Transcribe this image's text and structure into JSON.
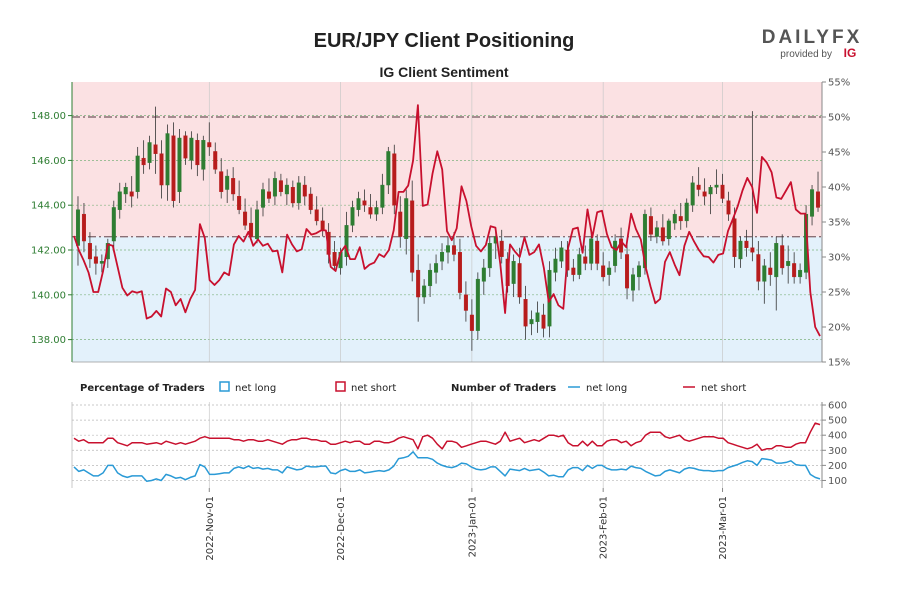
{
  "chart_data": {
    "type": "candlestick+line",
    "title": "EUR/JPY Client Positioning",
    "subtitle": "IG Client Sentiment",
    "brand": {
      "name": "DAILYFX",
      "provided_by": "provided by",
      "provider": "IG"
    },
    "price_axis": {
      "ylim": [
        137,
        149.5
      ],
      "ticks": [
        "148.00",
        "146.00",
        "144.00",
        "142.00",
        "140.00",
        "138.00"
      ],
      "tick_values": [
        148,
        146,
        144,
        142,
        140,
        138
      ]
    },
    "pct_axis": {
      "ylim": [
        15,
        55
      ],
      "ticks": [
        "55%",
        "50%",
        "45%",
        "40%",
        "35%",
        "30%",
        "25%",
        "20%",
        "15%"
      ],
      "tick_values": [
        55,
        50,
        45,
        40,
        35,
        30,
        25,
        20,
        15
      ]
    },
    "ref_lines_pct": [
      50,
      32.9
    ],
    "count_axis": {
      "ylim": [
        50,
        620
      ],
      "ticks": [
        "600",
        "500",
        "400",
        "300",
        "200",
        "100"
      ],
      "tick_values": [
        600,
        500,
        400,
        300,
        200,
        100
      ]
    },
    "x_labels": [
      "2022-Nov-01",
      "2022-Dec-01",
      "2023-Jan-01",
      "2023-Feb-01",
      "2023-Mar-01"
    ],
    "x_label_index": [
      22,
      44,
      66,
      88,
      108
    ],
    "legend": {
      "pct_heading": "Percentage of Traders",
      "pct_long": "net long",
      "pct_short": "net short",
      "num_heading": "Number of Traders",
      "num_long": "net long",
      "num_short": "net short"
    },
    "colors": {
      "long": "#2a9ad6",
      "short": "#c8102e",
      "bull": "#2e7d32",
      "bear": "#b71c1c",
      "green_axis": "#2e7d32",
      "short_zone": "#fbe1e3",
      "long_zone": "#e3f1fb"
    },
    "candles_ohlc": [
      [
        142.2,
        144.4,
        141.3,
        143.8
      ],
      [
        143.6,
        144.1,
        141.9,
        142.4
      ],
      [
        142.3,
        142.8,
        141.2,
        141.6
      ],
      [
        141.7,
        142.2,
        140.9,
        141.4
      ],
      [
        141.4,
        141.8,
        141.0,
        141.5
      ],
      [
        141.6,
        142.5,
        141.2,
        142.3
      ],
      [
        142.4,
        144.2,
        141.9,
        143.9
      ],
      [
        143.8,
        145.0,
        143.4,
        144.6
      ],
      [
        144.5,
        145.0,
        144.1,
        144.8
      ],
      [
        144.6,
        145.3,
        143.9,
        144.4
      ],
      [
        144.6,
        146.6,
        144.3,
        146.2
      ],
      [
        146.1,
        146.9,
        145.4,
        145.8
      ],
      [
        145.9,
        147.1,
        145.6,
        146.8
      ],
      [
        146.7,
        148.4,
        145.4,
        146.3
      ],
      [
        146.3,
        146.9,
        144.3,
        144.9
      ],
      [
        144.9,
        147.6,
        144.2,
        147.2
      ],
      [
        147.1,
        147.7,
        143.9,
        144.2
      ],
      [
        144.6,
        147.4,
        144.1,
        147.0
      ],
      [
        147.1,
        147.3,
        145.8,
        146.1
      ],
      [
        146.0,
        147.3,
        145.6,
        147.0
      ],
      [
        146.9,
        147.2,
        145.3,
        145.8
      ],
      [
        145.6,
        147.1,
        145.1,
        146.9
      ],
      [
        146.8,
        147.7,
        146.2,
        146.6
      ],
      [
        146.4,
        146.8,
        145.4,
        145.6
      ],
      [
        145.5,
        146.1,
        144.3,
        144.6
      ],
      [
        144.7,
        145.6,
        144.1,
        145.3
      ],
      [
        145.2,
        145.7,
        144.2,
        144.5
      ],
      [
        144.4,
        145.1,
        143.6,
        143.8
      ],
      [
        143.7,
        144.3,
        142.9,
        143.1
      ],
      [
        143.2,
        143.9,
        142.4,
        142.6
      ],
      [
        142.5,
        144.2,
        142.3,
        143.8
      ],
      [
        143.9,
        145.0,
        143.5,
        144.7
      ],
      [
        144.6,
        145.2,
        144.1,
        144.3
      ],
      [
        144.4,
        145.5,
        144.0,
        145.2
      ],
      [
        145.1,
        145.4,
        144.4,
        144.6
      ],
      [
        144.5,
        145.2,
        144.0,
        144.9
      ],
      [
        144.8,
        145.1,
        143.9,
        144.1
      ],
      [
        144.1,
        145.3,
        143.8,
        145.0
      ],
      [
        144.9,
        145.3,
        144.0,
        144.4
      ],
      [
        144.5,
        144.8,
        143.6,
        143.8
      ],
      [
        143.8,
        144.4,
        143.1,
        143.3
      ],
      [
        143.3,
        143.9,
        142.6,
        142.9
      ],
      [
        142.8,
        143.2,
        141.4,
        141.8
      ],
      [
        141.9,
        142.4,
        141.1,
        141.3
      ],
      [
        141.2,
        142.1,
        140.9,
        141.9
      ],
      [
        141.7,
        143.7,
        141.3,
        143.1
      ],
      [
        143.1,
        144.2,
        142.8,
        143.9
      ],
      [
        143.8,
        144.6,
        143.5,
        144.3
      ],
      [
        144.2,
        144.7,
        143.7,
        144.0
      ],
      [
        143.9,
        144.5,
        143.4,
        143.6
      ],
      [
        143.6,
        144.2,
        143.3,
        143.9
      ],
      [
        143.9,
        145.4,
        143.6,
        144.9
      ],
      [
        144.9,
        146.6,
        144.5,
        146.4
      ],
      [
        146.3,
        146.7,
        143.6,
        144.0
      ],
      [
        143.7,
        144.4,
        142.1,
        142.6
      ],
      [
        142.5,
        144.7,
        141.8,
        144.3
      ],
      [
        144.2,
        145.1,
        140.6,
        141.0
      ],
      [
        141.1,
        141.8,
        138.8,
        139.9
      ],
      [
        139.9,
        140.7,
        139.6,
        140.4
      ],
      [
        140.4,
        141.4,
        139.9,
        141.1
      ],
      [
        141.0,
        141.8,
        140.5,
        141.4
      ],
      [
        141.5,
        142.3,
        141.1,
        141.9
      ],
      [
        141.9,
        142.6,
        141.4,
        142.2
      ],
      [
        142.2,
        142.8,
        141.5,
        141.8
      ],
      [
        141.9,
        142.5,
        139.8,
        140.1
      ],
      [
        140.0,
        140.6,
        138.8,
        139.3
      ],
      [
        139.1,
        139.8,
        137.5,
        138.4
      ],
      [
        138.4,
        141.0,
        138.0,
        140.7
      ],
      [
        140.6,
        141.6,
        140.0,
        141.2
      ],
      [
        141.2,
        142.6,
        140.8,
        142.3
      ],
      [
        142.3,
        143.0,
        141.6,
        142.6
      ],
      [
        142.4,
        142.9,
        141.4,
        141.7
      ],
      [
        141.6,
        141.9,
        140.1,
        140.4
      ],
      [
        140.5,
        141.8,
        139.9,
        141.5
      ],
      [
        141.4,
        142.1,
        139.6,
        139.9
      ],
      [
        139.8,
        140.4,
        138.0,
        138.6
      ],
      [
        138.7,
        139.3,
        138.2,
        138.9
      ],
      [
        138.8,
        139.7,
        138.3,
        139.2
      ],
      [
        139.1,
        139.6,
        138.1,
        138.5
      ],
      [
        138.6,
        141.5,
        138.1,
        141.1
      ],
      [
        141.0,
        142.1,
        140.6,
        141.6
      ],
      [
        141.5,
        142.4,
        141.2,
        142.1
      ],
      [
        142.0,
        142.4,
        140.8,
        141.1
      ],
      [
        141.2,
        141.6,
        140.6,
        140.9
      ],
      [
        140.9,
        142.1,
        140.7,
        141.8
      ],
      [
        141.7,
        142.2,
        141.1,
        141.4
      ],
      [
        141.4,
        142.8,
        141.1,
        142.5
      ],
      [
        142.4,
        142.7,
        141.1,
        141.4
      ],
      [
        141.3,
        141.9,
        140.6,
        140.8
      ],
      [
        140.9,
        141.5,
        140.4,
        141.2
      ],
      [
        141.3,
        142.7,
        141.0,
        142.4
      ],
      [
        142.5,
        143.0,
        141.6,
        141.9
      ],
      [
        141.8,
        142.3,
        139.8,
        140.3
      ],
      [
        140.2,
        141.2,
        139.7,
        140.9
      ],
      [
        140.8,
        141.5,
        140.2,
        141.3
      ],
      [
        141.2,
        143.8,
        140.9,
        143.6
      ],
      [
        143.5,
        143.9,
        142.4,
        142.7
      ],
      [
        142.6,
        143.3,
        142.3,
        143.0
      ],
      [
        143.0,
        143.6,
        142.2,
        142.4
      ],
      [
        142.5,
        143.4,
        142.2,
        143.3
      ],
      [
        143.2,
        143.8,
        142.9,
        143.6
      ],
      [
        143.5,
        144.1,
        142.9,
        143.3
      ],
      [
        143.3,
        144.3,
        143.0,
        144.1
      ],
      [
        144.0,
        145.3,
        143.7,
        145.0
      ],
      [
        144.9,
        145.7,
        144.4,
        144.7
      ],
      [
        144.6,
        145.2,
        144.0,
        144.4
      ],
      [
        144.5,
        144.9,
        143.6,
        144.8
      ],
      [
        144.8,
        145.6,
        144.5,
        144.9
      ],
      [
        144.9,
        145.4,
        144.1,
        144.3
      ],
      [
        144.2,
        144.6,
        143.3,
        143.6
      ],
      [
        143.4,
        143.9,
        141.2,
        141.7
      ],
      [
        141.6,
        142.6,
        141.2,
        142.4
      ],
      [
        142.4,
        142.9,
        141.7,
        142.1
      ],
      [
        142.1,
        148.2,
        141.5,
        141.9
      ],
      [
        141.8,
        142.4,
        140.2,
        140.6
      ],
      [
        140.6,
        141.6,
        139.6,
        141.3
      ],
      [
        141.2,
        141.9,
        140.4,
        140.9
      ],
      [
        140.8,
        142.6,
        139.3,
        142.3
      ],
      [
        142.2,
        142.7,
        140.9,
        141.2
      ],
      [
        141.3,
        142.2,
        140.5,
        141.5
      ],
      [
        141.4,
        141.9,
        140.5,
        140.8
      ],
      [
        140.8,
        141.4,
        140.5,
        141.1
      ],
      [
        141.0,
        144.0,
        140.7,
        143.6
      ],
      [
        143.5,
        144.9,
        143.1,
        144.7
      ],
      [
        144.6,
        145.5,
        143.7,
        143.9
      ]
    ],
    "pct_net_long": [
      33.0,
      31.0,
      29.5,
      27.8,
      25.0,
      25.0,
      28.0,
      31.8,
      31.6,
      28.6,
      25.6,
      24.5,
      25.1,
      24.9,
      25.1,
      21.2,
      21.5,
      22.3,
      21.5,
      25.5,
      25.0,
      23.1,
      24.0,
      22.1,
      24.0,
      25.3,
      34.7,
      32.7,
      26.7,
      26.0,
      26.7,
      27.8,
      27.4,
      31.8,
      33.0,
      32.2,
      33.6,
      31.6,
      32.5,
      31.6,
      31.9,
      30.8,
      30.9,
      27.8,
      33.2,
      31.8,
      30.8,
      31.1,
      34.0,
      33.2,
      33.4,
      33.8,
      33.8,
      28.6,
      28.0,
      30.6,
      31.6,
      29.7,
      29.7,
      31.4,
      28.3,
      28.9,
      29.2,
      30.4,
      30.0,
      31.0,
      33.8,
      39.3,
      39.3,
      40.2,
      43.8,
      51.7,
      37.3,
      37.5,
      41.9,
      45.1,
      42.5,
      33.7,
      32.4,
      34.1,
      40.1,
      38.0,
      34.4,
      31.6,
      30.8,
      31.7,
      34.4,
      34.2,
      29.0,
      22.0,
      31.8,
      30.8,
      30.0,
      32.8,
      30.3,
      30.7,
      31.8,
      28.4,
      23.6,
      24.7,
      23.1,
      22.6,
      31.3,
      34.0,
      34.2,
      30.6,
      36.8,
      32.8,
      36.4,
      36.6,
      33.3,
      31.4,
      31.0,
      32.2,
      31.4,
      36.2,
      34.0,
      32.5,
      28.6,
      25.8,
      23.4,
      24.0,
      29.3,
      30.7,
      28.9,
      27.4,
      31.6,
      33.6,
      32.2,
      31.0,
      30.1,
      30.0,
      29.2,
      30.3,
      30.5,
      33.7,
      35.4,
      37.2,
      39.5,
      41.3,
      40.0,
      36.3,
      44.3,
      43.5,
      42.1,
      38.5,
      38.3,
      39.5,
      40.7,
      36.8,
      36.2,
      36.2,
      25.0,
      20.0,
      18.7
    ],
    "count_net_long": [
      190,
      160,
      170,
      150,
      130,
      130,
      150,
      200,
      200,
      150,
      130,
      120,
      130,
      130,
      130,
      95,
      100,
      110,
      100,
      140,
      130,
      115,
      120,
      105,
      120,
      130,
      205,
      190,
      140,
      140,
      145,
      150,
      150,
      180,
      190,
      180,
      195,
      180,
      185,
      175,
      180,
      170,
      170,
      150,
      190,
      180,
      170,
      175,
      195,
      190,
      190,
      195,
      195,
      150,
      145,
      165,
      175,
      160,
      160,
      170,
      150,
      155,
      160,
      165,
      160,
      170,
      195,
      245,
      250,
      260,
      290,
      250,
      250,
      250,
      240,
      215,
      200,
      190,
      185,
      195,
      215,
      210,
      190,
      175,
      170,
      175,
      190,
      190,
      160,
      130,
      175,
      170,
      165,
      180,
      165,
      170,
      175,
      155,
      130,
      135,
      125,
      125,
      170,
      185,
      185,
      165,
      200,
      180,
      200,
      200,
      180,
      170,
      170,
      175,
      170,
      195,
      185,
      180,
      160,
      145,
      130,
      135,
      160,
      170,
      160,
      150,
      175,
      185,
      180,
      170,
      165,
      165,
      160,
      165,
      165,
      185,
      195,
      205,
      220,
      230,
      225,
      200,
      245,
      240,
      235,
      215,
      215,
      220,
      230,
      205,
      200,
      200,
      140,
      120,
      110
    ],
    "count_net_short": [
      380,
      360,
      370,
      350,
      350,
      350,
      350,
      380,
      380,
      350,
      340,
      330,
      350,
      350,
      350,
      340,
      345,
      350,
      340,
      360,
      350,
      340,
      350,
      340,
      350,
      360,
      380,
      390,
      380,
      380,
      380,
      380,
      380,
      370,
      370,
      360,
      370,
      370,
      360,
      360,
      370,
      360,
      350,
      340,
      360,
      370,
      370,
      380,
      380,
      370,
      370,
      360,
      360,
      340,
      340,
      350,
      360,
      350,
      360,
      360,
      340,
      340,
      360,
      360,
      350,
      350,
      360,
      380,
      390,
      380,
      370,
      310,
      390,
      400,
      380,
      340,
      310,
      360,
      360,
      350,
      320,
      330,
      340,
      350,
      360,
      360,
      350,
      340,
      360,
      420,
      360,
      370,
      380,
      350,
      360,
      370,
      360,
      380,
      400,
      400,
      390,
      400,
      350,
      330,
      330,
      360,
      330,
      360,
      330,
      330,
      360,
      370,
      370,
      350,
      360,
      330,
      350,
      360,
      400,
      420,
      420,
      420,
      390,
      380,
      390,
      400,
      370,
      360,
      370,
      380,
      390,
      390,
      390,
      380,
      380,
      350,
      340,
      330,
      320,
      310,
      320,
      340,
      300,
      310,
      310,
      330,
      330,
      320,
      320,
      340,
      350,
      350,
      420,
      480,
      470
    ]
  }
}
